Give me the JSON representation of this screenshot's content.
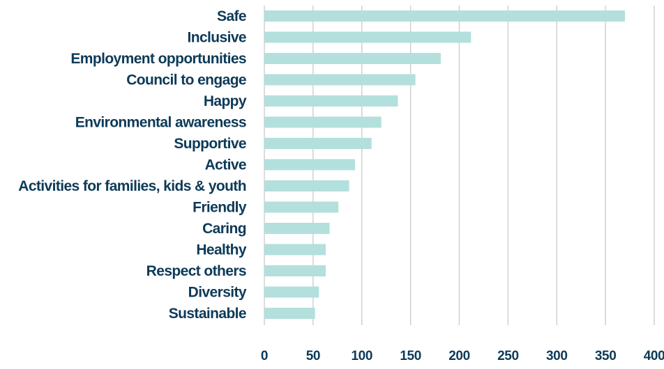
{
  "colors": {
    "bar": "#b3e0dc",
    "label": "#0d3a58",
    "grid": "#d0d0d0"
  },
  "chart_data": {
    "type": "bar",
    "orientation": "horizontal",
    "categories": [
      "Safe",
      "Inclusive",
      "Employment opportunities",
      "Council to engage",
      "Happy",
      "Environmental awareness",
      "Supportive",
      "Active",
      "Activities for families, kids & youth",
      "Friendly",
      "Caring",
      "Healthy",
      "Respect others",
      "Diversity",
      "Sustainable"
    ],
    "values": [
      370,
      212,
      181,
      155,
      137,
      120,
      110,
      93,
      87,
      76,
      67,
      63,
      63,
      56,
      52
    ],
    "xticks": [
      0,
      50,
      100,
      150,
      200,
      250,
      300,
      350,
      400
    ],
    "xlim": [
      0,
      400
    ],
    "grid": true,
    "legend": false,
    "title": "",
    "xlabel": "",
    "ylabel": ""
  }
}
